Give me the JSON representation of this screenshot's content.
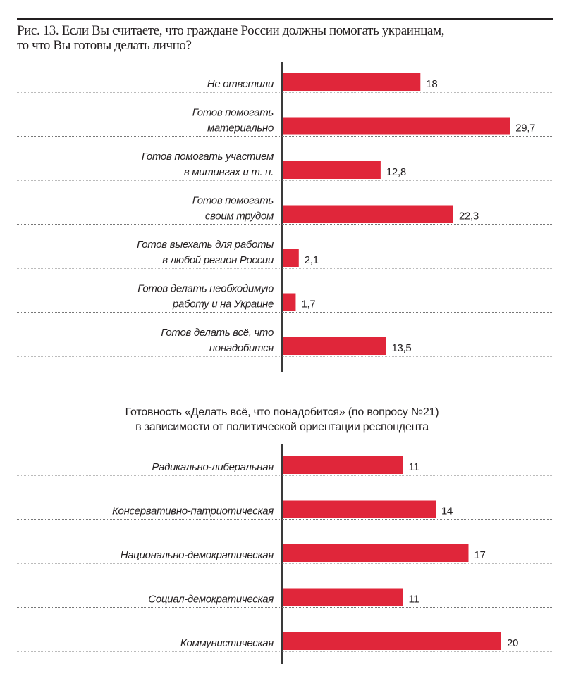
{
  "figure": {
    "title_line1": "Рис. 13. Если Вы считаете, что граждане России должны помогать украинцам,",
    "title_line2": "то что Вы готовы делать лично?",
    "bar_color": "#e0263a"
  },
  "chart_data": [
    {
      "type": "bar",
      "orientation": "horizontal",
      "title": "Рис. 13. Если Вы считаете, что граждане России должны помогать украинцам, то что Вы готовы делать лично?",
      "categories": [
        [
          "Не ответили"
        ],
        [
          "Готов помогать",
          "материально"
        ],
        [
          "Готов помогать участием",
          "в митингах и т. п."
        ],
        [
          "Готов помогать",
          "своим трудом"
        ],
        [
          "Готов выехать для работы",
          "в любой регион России"
        ],
        [
          "Готов делать необходимую",
          "работу и на Украине"
        ],
        [
          "Готов делать всё, что",
          "понадобится"
        ]
      ],
      "values": [
        18,
        29.7,
        12.8,
        22.3,
        2.1,
        1.7,
        13.5
      ],
      "value_labels": [
        "18",
        "29,7",
        "12,8",
        "22,3",
        "2,1",
        "1,7",
        "13,5"
      ],
      "xlim": [
        0,
        30
      ],
      "grid": "dotted separators between rows",
      "legend": "none"
    },
    {
      "type": "bar",
      "orientation": "horizontal",
      "title": "Готовность «Делать всё, что понадобится» (по вопросу №21) в зависимости от политической ориентации респондента",
      "title_line1": "Готовность «Делать всё, что понадобится» (по вопросу №21)",
      "title_line2": "в зависимости от политической ориентации респондента",
      "categories": [
        [
          "Радикально-либеральная"
        ],
        [
          "Консервативно-патриотическая"
        ],
        [
          "Национально-демократическая"
        ],
        [
          "Социал-демократическая"
        ],
        [
          "Коммунистическая"
        ]
      ],
      "values": [
        11,
        14,
        17,
        11,
        20
      ],
      "value_labels": [
        "11",
        "14",
        "17",
        "11",
        "20"
      ],
      "xlim": [
        0,
        20
      ],
      "grid": "dotted separators between rows",
      "legend": "none"
    }
  ]
}
